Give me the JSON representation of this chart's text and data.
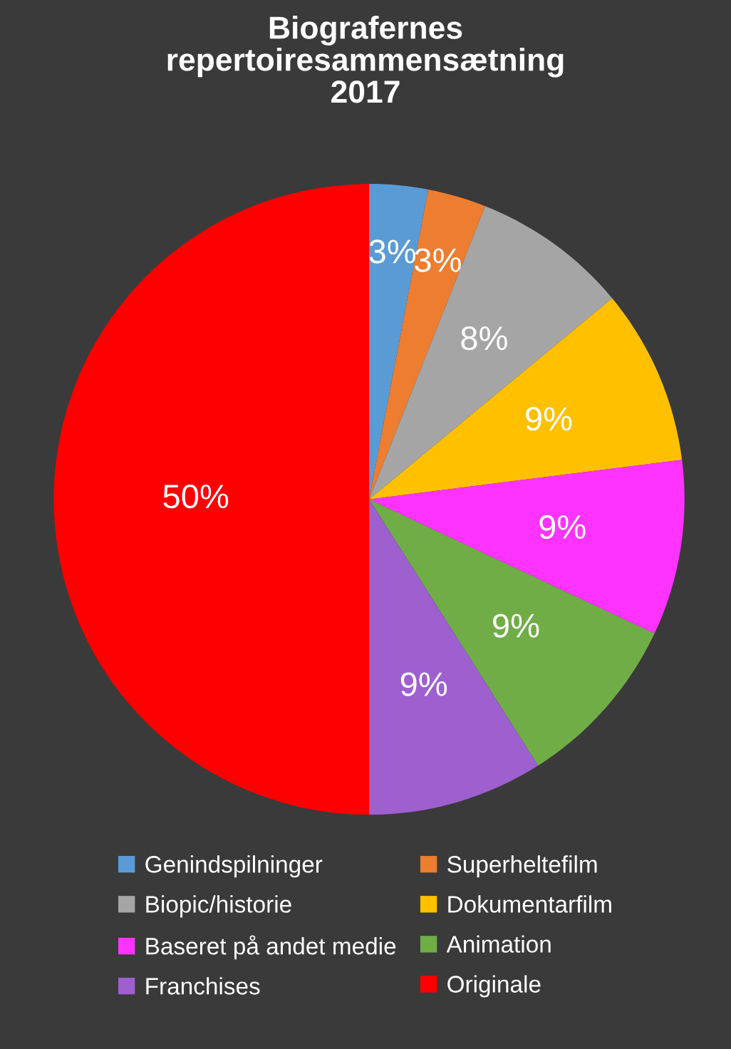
{
  "chart_data": {
    "type": "pie",
    "title": "Biografernes\nrepertoiresammensætning\n2017",
    "categories": [
      "Genindspilninger",
      "Superheltefilm",
      "Biopic/historie",
      "Dokumentarfilm",
      "Baseret på andet medie",
      "Animation",
      "Franchises",
      "Originale"
    ],
    "values": [
      3,
      3,
      8,
      9,
      9,
      9,
      9,
      50
    ],
    "colors": [
      "#5b9bd5",
      "#ed7d31",
      "#a5a5a5",
      "#ffc000",
      "#ff33ff",
      "#70ad47",
      "#9e5fcf",
      "#ff0000"
    ],
    "value_labels": [
      "3%",
      "3%",
      "8%",
      "9%",
      "9%",
      "9%",
      "9%",
      "50%"
    ],
    "legend": "bottom"
  }
}
